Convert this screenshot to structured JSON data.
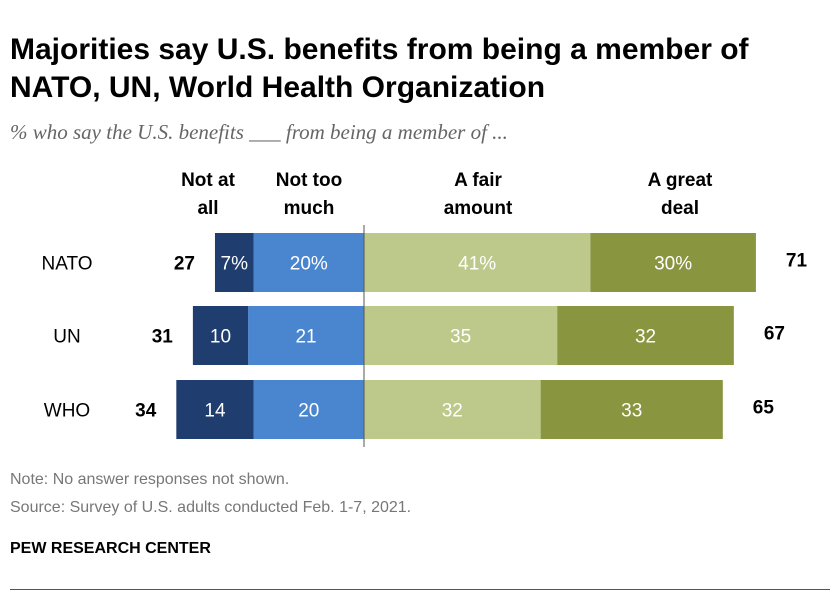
{
  "title": "Majorities say U.S. benefits from being a member of NATO, UN, World Health Organization",
  "subtitle": "% who say the U.S. benefits ___ from being a member of ...",
  "note": "Note: No answer responses not shown.",
  "source": "Source: Survey of U.S. adults conducted Feb. 1-7, 2021.",
  "organization": "PEW RESEARCH CENTER",
  "chart_data": {
    "type": "bar",
    "orientation": "horizontal-diverging",
    "categories": [
      "NATO",
      "UN",
      "WHO"
    ],
    "series": [
      {
        "name": "Not at all",
        "header": [
          "Not at",
          "all"
        ],
        "side": "negative",
        "color": "#1f3d6e",
        "values": [
          7,
          10,
          14
        ],
        "labels": [
          "7%",
          "10",
          "14"
        ]
      },
      {
        "name": "Not too much",
        "header": [
          "Not too",
          "much"
        ],
        "side": "negative",
        "color": "#4a86cf",
        "values": [
          20,
          21,
          20
        ],
        "labels": [
          "20%",
          "21",
          "20"
        ]
      },
      {
        "name": "A fair amount",
        "header": [
          "A fair",
          "amount"
        ],
        "side": "positive",
        "color": "#bcc98a",
        "values": [
          41,
          35,
          32
        ],
        "labels": [
          "41%",
          "35",
          "32"
        ]
      },
      {
        "name": "A great deal",
        "header": [
          "A great",
          "deal"
        ],
        "side": "positive",
        "color": "#8a953f",
        "values": [
          30,
          32,
          33
        ],
        "labels": [
          "30%",
          "32",
          "33"
        ]
      }
    ],
    "net_negative": [
      27,
      31,
      34
    ],
    "net_positive": [
      71,
      67,
      65
    ]
  }
}
